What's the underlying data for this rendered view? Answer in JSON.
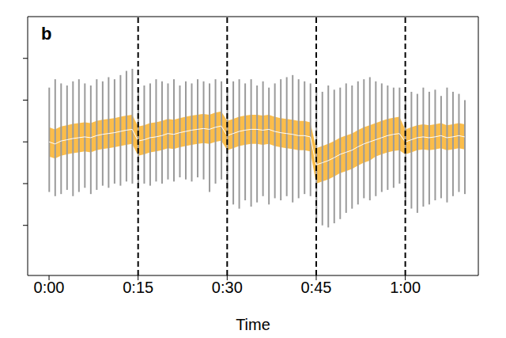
{
  "chart_data": {
    "type": "line",
    "title": "b",
    "xlabel": "Time",
    "xlim": [
      -3.6,
      72.3
    ],
    "ylim": [
      -3.2,
      3.0
    ],
    "xticks": [
      {
        "value": 0,
        "label": "0:00"
      },
      {
        "value": 15,
        "label": "0:15"
      },
      {
        "value": 30,
        "label": "0:30"
      },
      {
        "value": 45,
        "label": "0:45"
      },
      {
        "value": 60,
        "label": "1:00"
      }
    ],
    "yticks": [
      -2,
      -1,
      0,
      1,
      2
    ],
    "tick_labels": "x",
    "grid": false,
    "vlines": [
      15,
      30,
      45,
      60
    ],
    "x": [
      0,
      1,
      2,
      3,
      4,
      5,
      6,
      7,
      8,
      9,
      10,
      11,
      12,
      13,
      14,
      15,
      16,
      17,
      18,
      19,
      20,
      21,
      22,
      23,
      24,
      25,
      26,
      27,
      28,
      29,
      30,
      31,
      32,
      33,
      34,
      35,
      36,
      37,
      38,
      39,
      40,
      41,
      42,
      43,
      44,
      45,
      46,
      47,
      48,
      49,
      50,
      51,
      52,
      53,
      54,
      55,
      56,
      57,
      58,
      59,
      60,
      61,
      62,
      63,
      64,
      65,
      66,
      67,
      68,
      69,
      70
    ],
    "series": [
      {
        "type": "errorbar",
        "color": "#9a9a9a",
        "low": [
          -1.2,
          -1.3,
          -1.25,
          -1.15,
          -1.3,
          -1.2,
          -1.1,
          -1.25,
          -1.15,
          -1.05,
          -1.1,
          -1.0,
          -1.05,
          -0.95,
          -1.0,
          -1.1,
          -1.0,
          -1.05,
          -0.95,
          -1.0,
          -0.9,
          -0.95,
          -0.85,
          -0.9,
          -0.95,
          -0.85,
          -0.9,
          -1.2,
          -1.0,
          -0.9,
          -1.3,
          -1.5,
          -1.6,
          -1.4,
          -1.55,
          -1.45,
          -1.3,
          -1.5,
          -1.35,
          -1.4,
          -1.3,
          -1.45,
          -1.35,
          -1.25,
          -1.3,
          -1.9,
          -2.0,
          -2.05,
          -1.95,
          -1.85,
          -1.7,
          -1.6,
          -1.5,
          -1.35,
          -1.4,
          -1.3,
          -1.2,
          -1.15,
          -1.1,
          -1.0,
          -1.4,
          -1.6,
          -1.7,
          -1.55,
          -1.5,
          -1.4,
          -1.35,
          -1.45,
          -1.3,
          -1.2,
          -1.25
        ],
        "high": [
          1.3,
          1.5,
          1.4,
          1.35,
          1.45,
          1.5,
          1.4,
          1.35,
          1.5,
          1.45,
          1.55,
          1.5,
          1.6,
          1.7,
          1.75,
          1.3,
          1.35,
          1.4,
          1.5,
          1.45,
          1.4,
          1.5,
          1.35,
          1.45,
          1.4,
          1.5,
          1.45,
          1.4,
          1.5,
          1.45,
          1.3,
          1.45,
          1.5,
          1.4,
          1.5,
          1.35,
          1.45,
          1.3,
          1.4,
          1.5,
          1.55,
          1.6,
          1.5,
          1.45,
          1.4,
          1.3,
          1.2,
          1.35,
          1.25,
          1.3,
          1.4,
          1.35,
          1.45,
          1.5,
          1.55,
          1.45,
          1.4,
          1.35,
          1.3,
          1.3,
          1.1,
          1.2,
          1.15,
          1.3,
          1.2,
          1.25,
          1.1,
          1.3,
          1.2,
          1.15,
          1.0
        ]
      },
      {
        "type": "area",
        "color": "#fbbd4a",
        "low": [
          -0.35,
          -0.4,
          -0.33,
          -0.3,
          -0.27,
          -0.25,
          -0.23,
          -0.25,
          -0.2,
          -0.17,
          -0.15,
          -0.13,
          -0.1,
          -0.07,
          -0.05,
          -0.33,
          -0.3,
          -0.25,
          -0.23,
          -0.2,
          -0.15,
          -0.17,
          -0.13,
          -0.1,
          -0.07,
          -0.05,
          -0.03,
          -0.05,
          0.0,
          0.03,
          -0.2,
          -0.15,
          -0.1,
          -0.07,
          -0.05,
          -0.05,
          -0.07,
          -0.05,
          -0.1,
          -0.13,
          -0.15,
          -0.17,
          -0.2,
          -0.2,
          -0.23,
          -1.0,
          -0.95,
          -0.9,
          -0.83,
          -0.75,
          -0.7,
          -0.65,
          -0.57,
          -0.5,
          -0.45,
          -0.35,
          -0.3,
          -0.25,
          -0.22,
          -0.2,
          -0.3,
          -0.25,
          -0.2,
          -0.18,
          -0.2,
          -0.18,
          -0.15,
          -0.2,
          -0.18,
          -0.15,
          -0.18
        ],
        "high": [
          0.35,
          0.3,
          0.37,
          0.4,
          0.43,
          0.45,
          0.47,
          0.45,
          0.5,
          0.53,
          0.55,
          0.57,
          0.6,
          0.63,
          0.65,
          0.37,
          0.4,
          0.45,
          0.47,
          0.5,
          0.55,
          0.53,
          0.57,
          0.6,
          0.63,
          0.65,
          0.67,
          0.65,
          0.7,
          0.73,
          0.5,
          0.55,
          0.6,
          0.63,
          0.65,
          0.65,
          0.63,
          0.65,
          0.6,
          0.57,
          0.55,
          0.53,
          0.5,
          0.5,
          0.47,
          -0.15,
          -0.1,
          -0.05,
          0.02,
          0.1,
          0.15,
          0.2,
          0.28,
          0.35,
          0.4,
          0.45,
          0.5,
          0.55,
          0.58,
          0.6,
          0.3,
          0.35,
          0.4,
          0.42,
          0.4,
          0.42,
          0.45,
          0.4,
          0.42,
          0.45,
          0.42
        ]
      },
      {
        "type": "line",
        "color": "#ffffff",
        "values": [
          0.0,
          -0.05,
          0.02,
          0.05,
          0.08,
          0.1,
          0.12,
          0.1,
          0.15,
          0.18,
          0.2,
          0.22,
          0.25,
          0.28,
          0.3,
          0.02,
          0.05,
          0.1,
          0.12,
          0.15,
          0.2,
          0.18,
          0.22,
          0.25,
          0.28,
          0.3,
          0.32,
          0.3,
          0.35,
          0.38,
          0.15,
          0.2,
          0.25,
          0.28,
          0.3,
          0.3,
          0.28,
          0.3,
          0.25,
          0.22,
          0.2,
          0.18,
          0.15,
          0.15,
          0.12,
          -0.55,
          -0.5,
          -0.45,
          -0.38,
          -0.3,
          -0.25,
          -0.2,
          -0.12,
          -0.05,
          0.0,
          0.05,
          0.1,
          0.15,
          0.18,
          0.2,
          0.0,
          0.05,
          0.1,
          0.12,
          0.1,
          0.12,
          0.15,
          0.1,
          0.12,
          0.15,
          0.12
        ]
      }
    ]
  }
}
